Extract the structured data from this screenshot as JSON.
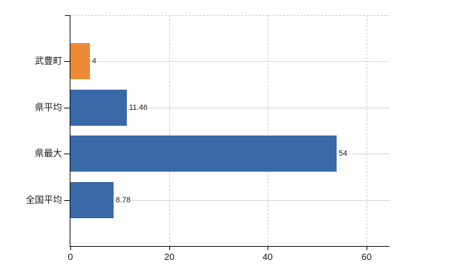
{
  "chart_data": {
    "type": "bar",
    "orientation": "horizontal",
    "title": "",
    "categories": [
      "武豊町",
      "県平均",
      "県最大",
      "全国平均"
    ],
    "values": [
      4,
      11.46,
      54,
      8.78
    ],
    "value_labels": [
      "4",
      "11.46",
      "54",
      "8.78"
    ],
    "bar_colors": [
      "#EC8A35",
      "#3A69A7",
      "#3A69A7",
      "#3A69A7"
    ],
    "x_ticks": [
      0,
      20,
      40,
      60
    ],
    "x_tick_labels": [
      "0",
      "20",
      "40",
      "60"
    ],
    "xlim": [
      0,
      64.7
    ],
    "legend": "none",
    "grid": {
      "vertical": "dashed",
      "horizontal": "solid",
      "top_border": "dashed"
    },
    "colors": {
      "highlight_bar": "#EC8A35",
      "default_bar": "#3A69A7",
      "axis": "#000000",
      "grid_vertical": "#CCCCCC",
      "grid_horizontal": "#D6DAD3",
      "text": "#1A1A1A",
      "background": "#FFFFFF"
    }
  }
}
